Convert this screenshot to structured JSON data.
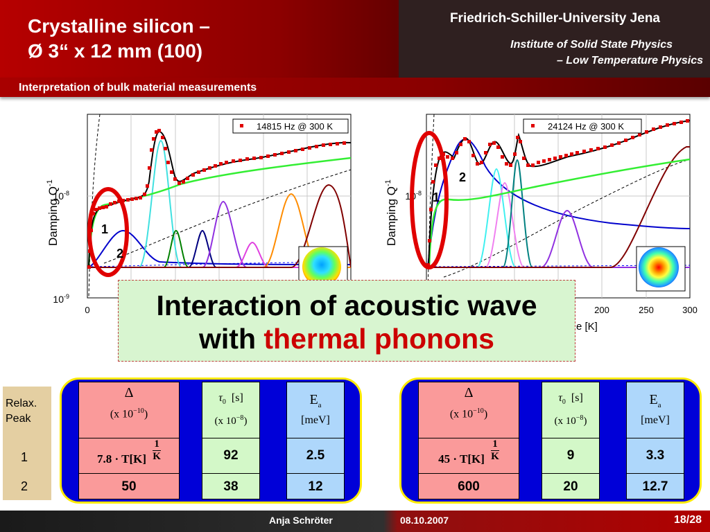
{
  "header": {
    "title_line1": "Crystalline silicon –",
    "title_line2": "Ø 3“ x 12 mm (100)",
    "university": "Friedrich-Schiller-University Jena",
    "institute_line1": "Institute of Solid State Physics",
    "institute_line2": "– Low Temperature Physics",
    "subtitle": "Interpretation of bulk material measurements"
  },
  "charts": [
    {
      "ylabel": "Damping Q",
      "ylabel_sup": "-1",
      "ytick_upper": "10",
      "ytick_upper_sup": "-8",
      "ytick_lower": "10",
      "ytick_lower_sup": "-9",
      "xtick_first": "0",
      "legend": "14815 Hz @ 300 K",
      "peak_labels": [
        "1",
        "2"
      ]
    },
    {
      "ylabel": "Damping Q",
      "ylabel_sup": "-1",
      "ytick_upper": "10",
      "ytick_upper_sup": "-8",
      "xticks_visible": [
        "200",
        "250",
        "300"
      ],
      "xlabel_visible": "e [K]",
      "legend": "24124 Hz @ 300 K",
      "peak_labels": [
        "1",
        "2"
      ]
    }
  ],
  "chart_data": [
    {
      "type": "line",
      "xlim": [
        0,
        300
      ],
      "y_scale": "log",
      "ylim": [
        1e-09,
        5e-08
      ],
      "series": [
        {
          "name": "14815 Hz @ 300 K",
          "marker": "square",
          "color": "#e00000"
        }
      ]
    },
    {
      "type": "line",
      "xlim": [
        0,
        300
      ],
      "y_scale": "log",
      "series": [
        {
          "name": "24124 Hz @ 300 K",
          "marker": "square",
          "color": "#e00000"
        }
      ]
    }
  ],
  "overlay": {
    "line1": "Interaction of acoustic wave",
    "line2_prefix": "with ",
    "line2_highlight": "thermal phonons"
  },
  "relaxation": {
    "title_line1": "Relax.",
    "title_line2": "Peak",
    "row1": "1",
    "row2": "2"
  },
  "tables": [
    {
      "delta_header": "Δ",
      "delta_unit": "x 10",
      "delta_exp": "−10",
      "delta_row1": "7.8 · T[K]",
      "delta_frac_num": "1",
      "delta_frac_den": "K",
      "delta_row2": "50",
      "tau_header": "τ",
      "tau_sub": "0",
      "tau_unit": "[s]",
      "tau_mult": "x 10",
      "tau_exp": "−8",
      "tau_row1": "92",
      "tau_row2": "38",
      "ea_header": "E",
      "ea_sub": "a",
      "ea_unit": "[meV]",
      "ea_row1": "2.5",
      "ea_row2": "12"
    },
    {
      "delta_header": "Δ",
      "delta_unit": "x 10",
      "delta_exp": "−10",
      "delta_row1": "45 · T[K]",
      "delta_frac_num": "1",
      "delta_frac_den": "K",
      "delta_row2": "600",
      "tau_header": "τ",
      "tau_sub": "0",
      "tau_unit": "[s]",
      "tau_mult": "x 10",
      "tau_exp": "−8",
      "tau_row1": "9",
      "tau_row2": "20",
      "ea_header": "E",
      "ea_sub": "a",
      "ea_unit": "[meV]",
      "ea_row1": "3.3",
      "ea_row2": "12.7"
    }
  ],
  "footer": {
    "author": "Anja Schröter",
    "date": "08.10.2007",
    "page": "18/28"
  },
  "colors": {
    "header_red": "#b60000",
    "header_dark": "#2f2020",
    "data_red": "#e00000",
    "highlight_red": "#cc0000",
    "table_frame_blue": "#0000d8",
    "table_frame_yellow": "#ffea00",
    "overlay_green": "#d8f5d0"
  }
}
